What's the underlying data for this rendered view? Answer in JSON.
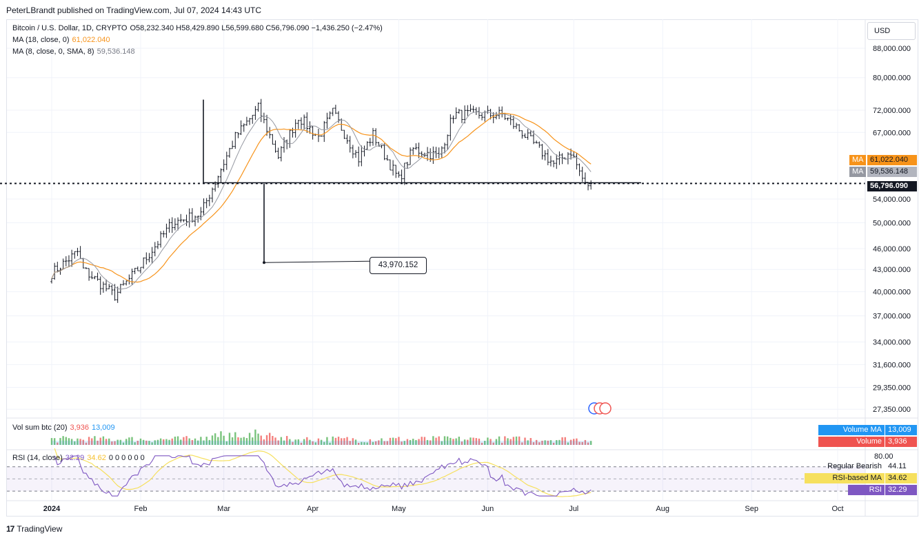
{
  "header": {
    "publisher": "PeterLBrandt published on TradingView.com, Jul 07, 2024 14:43 UTC"
  },
  "legend": {
    "symbol": "Bitcoin / U.S. Dollar, 1D, CRYPTO",
    "ohlc": "O58,232.340 H58,429.890 L56,599.680 C56,796.090 −1,436.250 (−2.47%)",
    "ma1_label": "MA (18, close, 0)",
    "ma1_value": "61,022.040",
    "ma2_label": "MA (8, close, 0, SMA, 8)",
    "ma2_value": "59,536.148",
    "vol_label": "Vol sum btc (20)",
    "vol_value": "3,936",
    "vol_ma_value": "13,009",
    "rsi_label": "RSI (14, close)",
    "rsi_value": "32.29",
    "rsi_ma_value": "34.62",
    "rsi_extra": "0 0 0 0 0 0"
  },
  "currency": "USD",
  "price_tags": {
    "ma1": {
      "label": "MA",
      "value": "61,022.040",
      "color": "#f7931a"
    },
    "ma2": {
      "label": "MA",
      "value": "59,536.148",
      "color": "#9598a1"
    },
    "last": {
      "value": "56,796.090",
      "color": "#131722"
    }
  },
  "volume_tags": {
    "volume_ma": {
      "label": "Volume MA",
      "value": "13,009",
      "color": "#2196f3"
    },
    "volume": {
      "label": "Volume",
      "value": "3,936",
      "color": "#ef5350"
    }
  },
  "rsi_tags": {
    "bearish": {
      "label": "Regular Bearish",
      "value": "44.11"
    },
    "rsi_ma": {
      "label": "RSI-based MA",
      "value": "34.62",
      "color": "#f6e05e"
    },
    "rsi": {
      "label": "RSI",
      "value": "32.29",
      "color": "#7e57c2"
    },
    "top": {
      "value": "80.00"
    }
  },
  "annotation": {
    "value": "43,970.152"
  },
  "footer": {
    "brand": "TradingView"
  },
  "chart_data": {
    "type": "bar",
    "symbol": "BTCUSD",
    "interval": "1D",
    "x_labels": [
      "2024",
      "Feb",
      "Mar",
      "Apr",
      "May",
      "Jun",
      "Jul",
      "Aug",
      "Sep",
      "Oct"
    ],
    "y_ticks": [
      "88,000.000",
      "80,000.000",
      "72,000.000",
      "67,000.000",
      "54,000.000",
      "50,000.000",
      "46,000.000",
      "43,000.000",
      "40,000.000",
      "37,000.000",
      "34,000.000",
      "31,600.000",
      "29,350.000",
      "27,350.000"
    ],
    "y_scale": "log",
    "ylim": [
      27000,
      92000
    ],
    "last_close": 56796.09,
    "ma18_last": 61022.04,
    "ma8_last": 59536.148,
    "horizontal_level": 56796.09,
    "target": 43970.152,
    "anchors": [
      {
        "date": "2024-01-01",
        "price": 42500
      },
      {
        "date": "2024-01-10",
        "price": 45500
      },
      {
        "date": "2024-01-12",
        "price": 43000
      },
      {
        "date": "2024-01-23",
        "price": 39500
      },
      {
        "date": "2024-01-31",
        "price": 43000
      },
      {
        "date": "2024-02-12",
        "price": 50000
      },
      {
        "date": "2024-02-22",
        "price": 51500
      },
      {
        "date": "2024-03-05",
        "price": 66000
      },
      {
        "date": "2024-03-13",
        "price": 72500
      },
      {
        "date": "2024-03-20",
        "price": 62000
      },
      {
        "date": "2024-03-27",
        "price": 70500
      },
      {
        "date": "2024-04-03",
        "price": 66000
      },
      {
        "date": "2024-04-08",
        "price": 71500
      },
      {
        "date": "2024-04-17",
        "price": 61500
      },
      {
        "date": "2024-04-22",
        "price": 66500
      },
      {
        "date": "2024-05-01",
        "price": 57500
      },
      {
        "date": "2024-05-06",
        "price": 63500
      },
      {
        "date": "2024-05-15",
        "price": 62000
      },
      {
        "date": "2024-05-20",
        "price": 71000
      },
      {
        "date": "2024-06-06",
        "price": 71000
      },
      {
        "date": "2024-06-13",
        "price": 67000
      },
      {
        "date": "2024-06-24",
        "price": 60500
      },
      {
        "date": "2024-06-30",
        "price": 63000
      },
      {
        "date": "2024-07-05",
        "price": 56500
      },
      {
        "date": "2024-07-07",
        "price": 56796
      }
    ],
    "volume_ma": 13009,
    "volume_last": 3936,
    "rsi_levels": [
      80,
      44.11,
      34.62,
      32.29
    ]
  }
}
